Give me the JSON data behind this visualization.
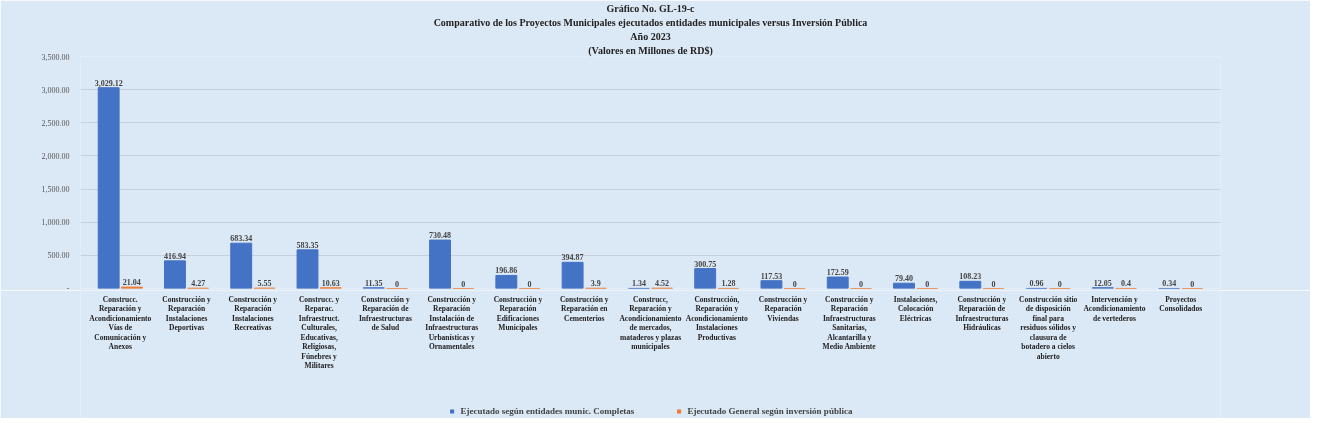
{
  "chart_data": {
    "type": "bar",
    "title": "Gráfico No. GL-19-c",
    "subtitle": "Comparativo de los Proyectos Municipales ejecutados entidades municipales versus Inversión Pública",
    "annotations": [
      "Año 2023",
      "(Valores en Millones de RD$)"
    ],
    "categories": [
      "Construcc. Reparación y Acondicionamiento Vías de Comunicación y Anexos",
      "Construcción y Reparación Instalaciones Deportivas",
      "Construcción y Reparación Instalaciones Recreativas",
      "Construcc. y Reparac. Infraestruct. Culturales, Educativas, Religiosas, Fúnebres y Militares",
      "Construcción y Reparación de Infraestructuras de Salud",
      "Construcción y Reparación Instalación de Infraestructuras Urbanísticas y Ornamentales",
      "Construcción y Reparación Edificaciones Municipales",
      "Construcción y Reparación en Cementerios",
      "Construcc, Reparación y Acondicionamiento de mercados, mataderos y plazas municipales",
      "Construcción, Reparación y Acondicionamiento Instalaciones Productivas",
      "Construcción y Reparación Viviendas",
      "Construcción y Reparación Infraestructuras Sanitarias, Alcantarilla y Medio Ambiente",
      "Instalaciones, Colocación Eléctricas",
      "Construcción y Reparación de Infraestructuras Hidráulicas",
      "Construcción sitio de disposición final para residuos sólidos y clausura de botadero a cielos abierto",
      "Intervención y Acondicionamiento de vertederos",
      "Proyectos Consolidados"
    ],
    "series": [
      {
        "name": "Ejecutado según entidades munic. Completas",
        "color": "#4472c4",
        "values": [
          3029.12,
          416.94,
          683.34,
          583.35,
          11.35,
          730.48,
          196.86,
          394.87,
          1.34,
          300.75,
          117.53,
          172.59,
          79.4,
          108.23,
          0.96,
          12.05,
          0.34
        ],
        "value_labels": [
          "3,029.12",
          "416.94",
          "683.34",
          "583.35",
          "11.35",
          "730.48",
          "196.86",
          "394.87",
          "1.34",
          "300.75",
          "117.53",
          "172.59",
          "79.40",
          "108.23",
          "0.96",
          "12.05",
          "0.34"
        ]
      },
      {
        "name": "Ejecutado General según inversión pública",
        "color": "#ed7d31",
        "values": [
          21.04,
          4.27,
          5.55,
          10.63,
          0,
          0,
          0,
          3.9,
          4.52,
          1.28,
          0,
          0,
          0,
          0,
          0,
          0.4,
          0
        ],
        "value_labels": [
          "21.04",
          "4.27",
          "5.55",
          "10.63",
          "0",
          "0",
          "0",
          "3.9",
          "4.52",
          "1.28",
          "0",
          "0",
          "0",
          "0",
          "0",
          "0.4",
          "0"
        ]
      }
    ],
    "ylim": [
      0,
      3500
    ],
    "yticks": [
      {
        "value": 0,
        "label": "-"
      },
      {
        "value": 500,
        "label": "500.00"
      },
      {
        "value": 1000,
        "label": "1,000.00"
      },
      {
        "value": 1500,
        "label": "1,500.00"
      },
      {
        "value": 2000,
        "label": "2,000.00"
      },
      {
        "value": 2500,
        "label": "2,500.00"
      },
      {
        "value": 3000,
        "label": "3,000.00"
      },
      {
        "value": 3500,
        "label": "3,500.00"
      }
    ],
    "grid": "y",
    "legend": "bottom"
  }
}
